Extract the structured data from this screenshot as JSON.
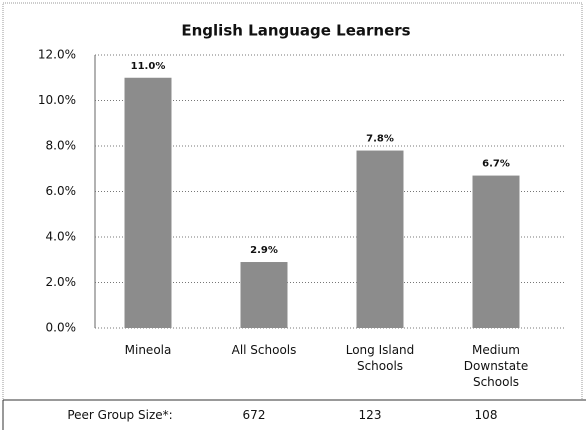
{
  "chart_data": {
    "type": "bar",
    "title": "English Language Learners",
    "categories": [
      "Mineola",
      "All Schools",
      "Long Island Schools",
      "Medium Downstate Schools"
    ],
    "values": [
      11.0,
      2.9,
      7.8,
      6.7
    ],
    "value_labels": [
      "11.0%",
      "2.9%",
      "7.8%",
      "6.7%"
    ],
    "color": "#8c8c8c",
    "ylim": [
      0,
      12
    ],
    "yticks": [
      {
        "value": 0,
        "label": "0.0%"
      },
      {
        "value": 2,
        "label": "2.0%"
      },
      {
        "value": 4,
        "label": "4.0%"
      },
      {
        "value": 6,
        "label": "6.0%"
      },
      {
        "value": 8,
        "label": "8.0%"
      },
      {
        "value": 10,
        "label": "10.0%"
      },
      {
        "value": 12,
        "label": "12.0%"
      }
    ],
    "grid": true
  },
  "peer_group": {
    "label": "Peer Group Size*:",
    "values": [
      672,
      123,
      108
    ]
  }
}
